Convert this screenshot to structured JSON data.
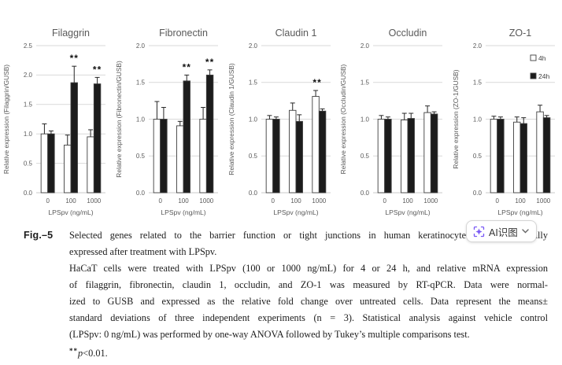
{
  "figure": {
    "caption_label": "Fig.–5",
    "caption_lines": [
      "Selected genes related to the barrier function or tight junctions in human keratinocytes are differentially",
      "expressed after treatment with LPSpv.",
      "HaCaT cells were treated with LPSpv (100 or 1000 ng/mL) for 4 or 24 h, and relative mRNA expression",
      "of filaggrin, fibronectin, claudin 1, occludin, and ZO-1 was measured by RT-qPCR. Data were normal-",
      "ized to GUSB and expressed as the relative fold change over untreated cells. Data represent the means±",
      "standard deviations of three independent experiments (n = 3). Statistical analysis against vehicle control",
      "(LPSpv: 0 ng/mL) was performed by one-way ANOVA followed by Tukey’s multiple comparisons test."
    ],
    "pvalue": {
      "stars": "**",
      "p": "p",
      "rest": "<0.01."
    }
  },
  "overlay": {
    "ai_badge_label": "AI识图"
  },
  "legend": {
    "position": "upper-right-of-last-chart",
    "items": [
      {
        "label": "4h",
        "fill": "#ffffff"
      },
      {
        "label": "24h",
        "fill": "#1c1c1c"
      }
    ]
  },
  "colors": {
    "background": "#ffffff",
    "chart_text": "#595959",
    "grid_line": "#d9d9d9",
    "axis_line": "#c9c9c9",
    "bar_fill_4h": "#ffffff",
    "bar_fill_24h": "#1c1c1c",
    "bar_stroke": "#3f3f3f",
    "error_bar": "#262626",
    "significance": "#111111",
    "caption_text": "#1c1c1c",
    "badge_accent": "#7a5af5",
    "badge_border": "#d5d5d5",
    "badge_text": "#333333"
  },
  "chart_data": [
    {
      "type": "bar",
      "title": "Filaggrin",
      "ylabel": "Relative expression (Filaggrin/GUSB)",
      "xlabel": "LPSpv (ng/mL)",
      "categories": [
        "0",
        "100",
        "1000"
      ],
      "ylim": [
        0,
        2.5
      ],
      "yticks": [
        0,
        0.5,
        1.0,
        1.5,
        2.0,
        2.5
      ],
      "grid": true,
      "series": [
        {
          "name": "4h",
          "values": [
            1.0,
            0.81,
            0.95
          ],
          "errors": [
            0.17,
            0.17,
            0.12
          ]
        },
        {
          "name": "24h",
          "values": [
            1.0,
            1.87,
            1.85
          ],
          "errors": [
            0.05,
            0.28,
            0.11
          ]
        }
      ],
      "significance": [
        {
          "group_index": 1,
          "series_index": 1,
          "label": "**"
        },
        {
          "group_index": 2,
          "series_index": 1,
          "label": "**"
        }
      ]
    },
    {
      "type": "bar",
      "title": "Fibronectin",
      "ylabel": "Relative expression (Fibronectin/GUSB)",
      "xlabel": "LPSpv (ng/mL)",
      "categories": [
        "0",
        "100",
        "1000"
      ],
      "ylim": [
        0,
        2.0
      ],
      "yticks": [
        0,
        0.5,
        1.0,
        1.5,
        2.0
      ],
      "grid": true,
      "series": [
        {
          "name": "4h",
          "values": [
            1.0,
            0.91,
            1.0
          ],
          "errors": [
            0.24,
            0.06,
            0.16
          ]
        },
        {
          "name": "24h",
          "values": [
            1.0,
            1.52,
            1.6
          ],
          "errors": [
            0.16,
            0.08,
            0.07
          ]
        }
      ],
      "significance": [
        {
          "group_index": 1,
          "series_index": 1,
          "label": "**"
        },
        {
          "group_index": 2,
          "series_index": 1,
          "label": "**"
        }
      ]
    },
    {
      "type": "bar",
      "title": "Claudin 1",
      "ylabel": "Relative expression (Claudin 1/GUSB)",
      "xlabel": "LPSpv (ng/mL)",
      "categories": [
        "0",
        "100",
        "1000"
      ],
      "ylim": [
        0,
        2.0
      ],
      "yticks": [
        0,
        0.5,
        1.0,
        1.5,
        2.0
      ],
      "grid": true,
      "series": [
        {
          "name": "4h",
          "values": [
            1.0,
            1.12,
            1.31
          ],
          "errors": [
            0.05,
            0.1,
            0.08
          ]
        },
        {
          "name": "24h",
          "values": [
            1.0,
            0.97,
            1.11
          ],
          "errors": [
            0.03,
            0.09,
            0.03
          ]
        }
      ],
      "significance": [
        {
          "group_index": 2,
          "series_index": 0,
          "label": "**"
        }
      ]
    },
    {
      "type": "bar",
      "title": "Occludin",
      "ylabel": "Relative expression (Occludin/GUSB)",
      "xlabel": "LPSpv (ng/mL)",
      "categories": [
        "0",
        "100",
        "1000"
      ],
      "ylim": [
        0,
        2.0
      ],
      "yticks": [
        0,
        0.5,
        1.0,
        1.5,
        2.0
      ],
      "grid": true,
      "series": [
        {
          "name": "4h",
          "values": [
            1.0,
            0.99,
            1.09
          ],
          "errors": [
            0.05,
            0.09,
            0.09
          ]
        },
        {
          "name": "24h",
          "values": [
            1.0,
            1.01,
            1.07
          ],
          "errors": [
            0.03,
            0.07,
            0.03
          ]
        }
      ],
      "significance": []
    },
    {
      "type": "bar",
      "title": "ZO-1",
      "ylabel": "Relative expression (ZO-1/GUSB)",
      "xlabel": "LPSpv (ng/mL)",
      "categories": [
        "0",
        "100",
        "1000"
      ],
      "ylim": [
        0,
        2.0
      ],
      "yticks": [
        0,
        0.5,
        1.0,
        1.5,
        2.0
      ],
      "grid": true,
      "show_legend": true,
      "series": [
        {
          "name": "4h",
          "values": [
            1.0,
            0.96,
            1.1
          ],
          "errors": [
            0.04,
            0.07,
            0.09
          ]
        },
        {
          "name": "24h",
          "values": [
            1.0,
            0.94,
            1.02
          ],
          "errors": [
            0.03,
            0.08,
            0.03
          ]
        }
      ],
      "significance": []
    }
  ]
}
